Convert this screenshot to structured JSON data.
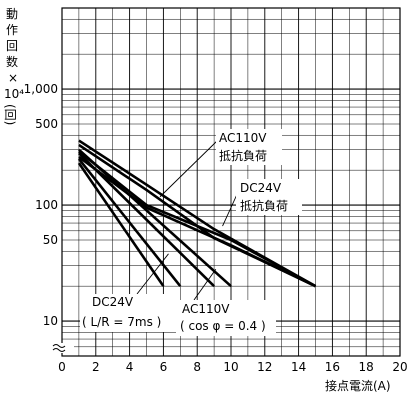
{
  "chart_data": {
    "type": "line",
    "xlabel": "接点電流(A)",
    "ylabel": [
      "動",
      "作",
      "回",
      "数",
      "×",
      "10⁴",
      "(回)"
    ],
    "y_scale": "log",
    "xlim": [
      0,
      20
    ],
    "ylim": [
      5,
      5000
    ],
    "x_ticks": [
      "0",
      "2",
      "4",
      "6",
      "8",
      "10",
      "12",
      "14",
      "16",
      "18",
      "20"
    ],
    "y_ticks": [
      {
        "value": 10,
        "label": "10"
      },
      {
        "value": 50,
        "label": "50"
      },
      {
        "value": 100,
        "label": "100"
      },
      {
        "value": 500,
        "label": "500"
      },
      {
        "value": 1000,
        "label": "1,000"
      }
    ],
    "grid": true,
    "series": [
      {
        "name": "AC110V 抵抗負荷 (upper)",
        "x": [
          1,
          5,
          9,
          15
        ],
        "y": [
          360,
          150,
          62,
          20
        ]
      },
      {
        "name": "AC110V 抵抗負荷 (lower)",
        "x": [
          1,
          5,
          9,
          15
        ],
        "y": [
          330,
          135,
          52,
          20
        ]
      },
      {
        "name": "DC24V 抵抗負荷 (upper)",
        "x": [
          1,
          5,
          10,
          15
        ],
        "y": [
          290,
          100,
          50,
          20
        ]
      },
      {
        "name": "DC24V 抵抗負荷 (lower)",
        "x": [
          1,
          5,
          10,
          15
        ],
        "y": [
          260,
          95,
          45,
          20
        ]
      },
      {
        "name": "DC24V (L/R=7ms) (upper)",
        "x": [
          1,
          7
        ],
        "y": [
          250,
          20
        ]
      },
      {
        "name": "DC24V (L/R=7ms) (lower)",
        "x": [
          1,
          6
        ],
        "y": [
          230,
          20
        ]
      },
      {
        "name": "AC110V (cos φ=0.4) (upper)",
        "x": [
          1,
          10
        ],
        "y": [
          300,
          20
        ]
      },
      {
        "name": "AC110V (cos φ=0.4) (lower)",
        "x": [
          1,
          9
        ],
        "y": [
          280,
          20
        ]
      }
    ],
    "annotations": {
      "ac110v_res_line1": "AC110V",
      "ac110v_res_line2": "抵抗負荷",
      "dc24v_res_line1": "DC24V",
      "dc24v_res_line2": "抵抗負荷",
      "dc24v_ind_line1": "DC24V",
      "dc24v_ind_line2": "( L/R = 7ms )",
      "ac110v_ind_line1": "AC110V",
      "ac110v_ind_line2": "( cos φ = 0.4 )"
    }
  }
}
